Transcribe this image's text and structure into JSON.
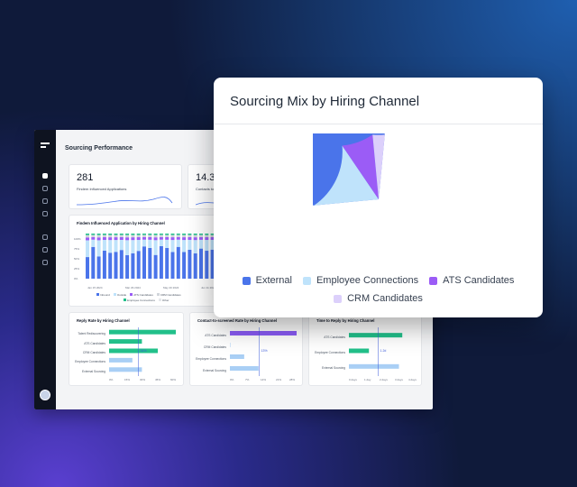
{
  "dashboard": {
    "title": "Sourcing Performance",
    "kpis": [
      {
        "value": "281",
        "label": "Findem Influenced Applications"
      },
      {
        "value": "14.3",
        "label": "Contacts to..."
      }
    ],
    "stacked_chart": {
      "title": "Findem Influenced Application by Hiring Channel",
      "y_ticks": [
        "100%",
        "75%",
        "50%",
        "25%",
        "0%"
      ],
      "x_ticks": [
        "Jan 15 2024",
        "Mar 29 2024",
        "May 20 2024",
        "Jun 11 2024"
      ],
      "legend": [
        "Inbound",
        "Outside",
        "ATS Candidates",
        "CRM Candidates",
        "Employee Connections",
        "Other"
      ]
    },
    "reply_rate": {
      "title": "Reply Rate by Hiring Channel",
      "rows": [
        {
          "label": "Talent Rediscovering",
          "value": 63
        },
        {
          "label": "ATS Candidates",
          "value": 31
        },
        {
          "label": "CRM Candidates",
          "value": 46
        },
        {
          "label": "Employee Connections",
          "value": 22
        },
        {
          "label": "External Sourcing",
          "value": 31
        }
      ],
      "ref_label": "34%",
      "x_ticks": [
        "0%",
        "15%",
        "30%",
        "45%",
        "60%"
      ]
    },
    "contact_rate": {
      "title": "Contact-to-screened Rate by Hiring Channel",
      "rows": [
        {
          "label": "ATS Candidates",
          "value": 28
        },
        {
          "label": "CRM Candidates",
          "value": 0
        },
        {
          "label": "Employee Connections",
          "value": 6
        },
        {
          "label": "External Sourcing",
          "value": 12
        }
      ],
      "ref_label": "13%",
      "x_ticks": [
        "0%",
        "7%",
        "14%",
        "21%",
        "28%"
      ]
    },
    "time_to_reply": {
      "title": "Time to Reply by Hiring Channel",
      "rows": [
        {
          "label": "ATS Candidates",
          "value": 3.2
        },
        {
          "label": "Employee Connections",
          "value": 1.2
        },
        {
          "label": "External Sourcing",
          "value": 3.0
        }
      ],
      "ref_label": "1.2d",
      "x_ticks": [
        "0 days",
        "1 day",
        "2 days",
        "3 days",
        "4 days"
      ]
    }
  },
  "popup": {
    "title": "Sourcing Mix by Hiring Channel"
  },
  "chart_data": {
    "type": "pie",
    "title": "Sourcing Mix by Hiring Channel",
    "series": [
      {
        "name": "External",
        "value": 72,
        "color": "#4a74ea"
      },
      {
        "name": "Employee Connections",
        "value": 17,
        "color": "#bfe3fb"
      },
      {
        "name": "ATS Candidates",
        "value": 8,
        "color": "#9b5cf6"
      },
      {
        "name": "CRM Candidates",
        "value": 3,
        "color": "#dcd0fb"
      }
    ],
    "legend_position": "bottom"
  }
}
